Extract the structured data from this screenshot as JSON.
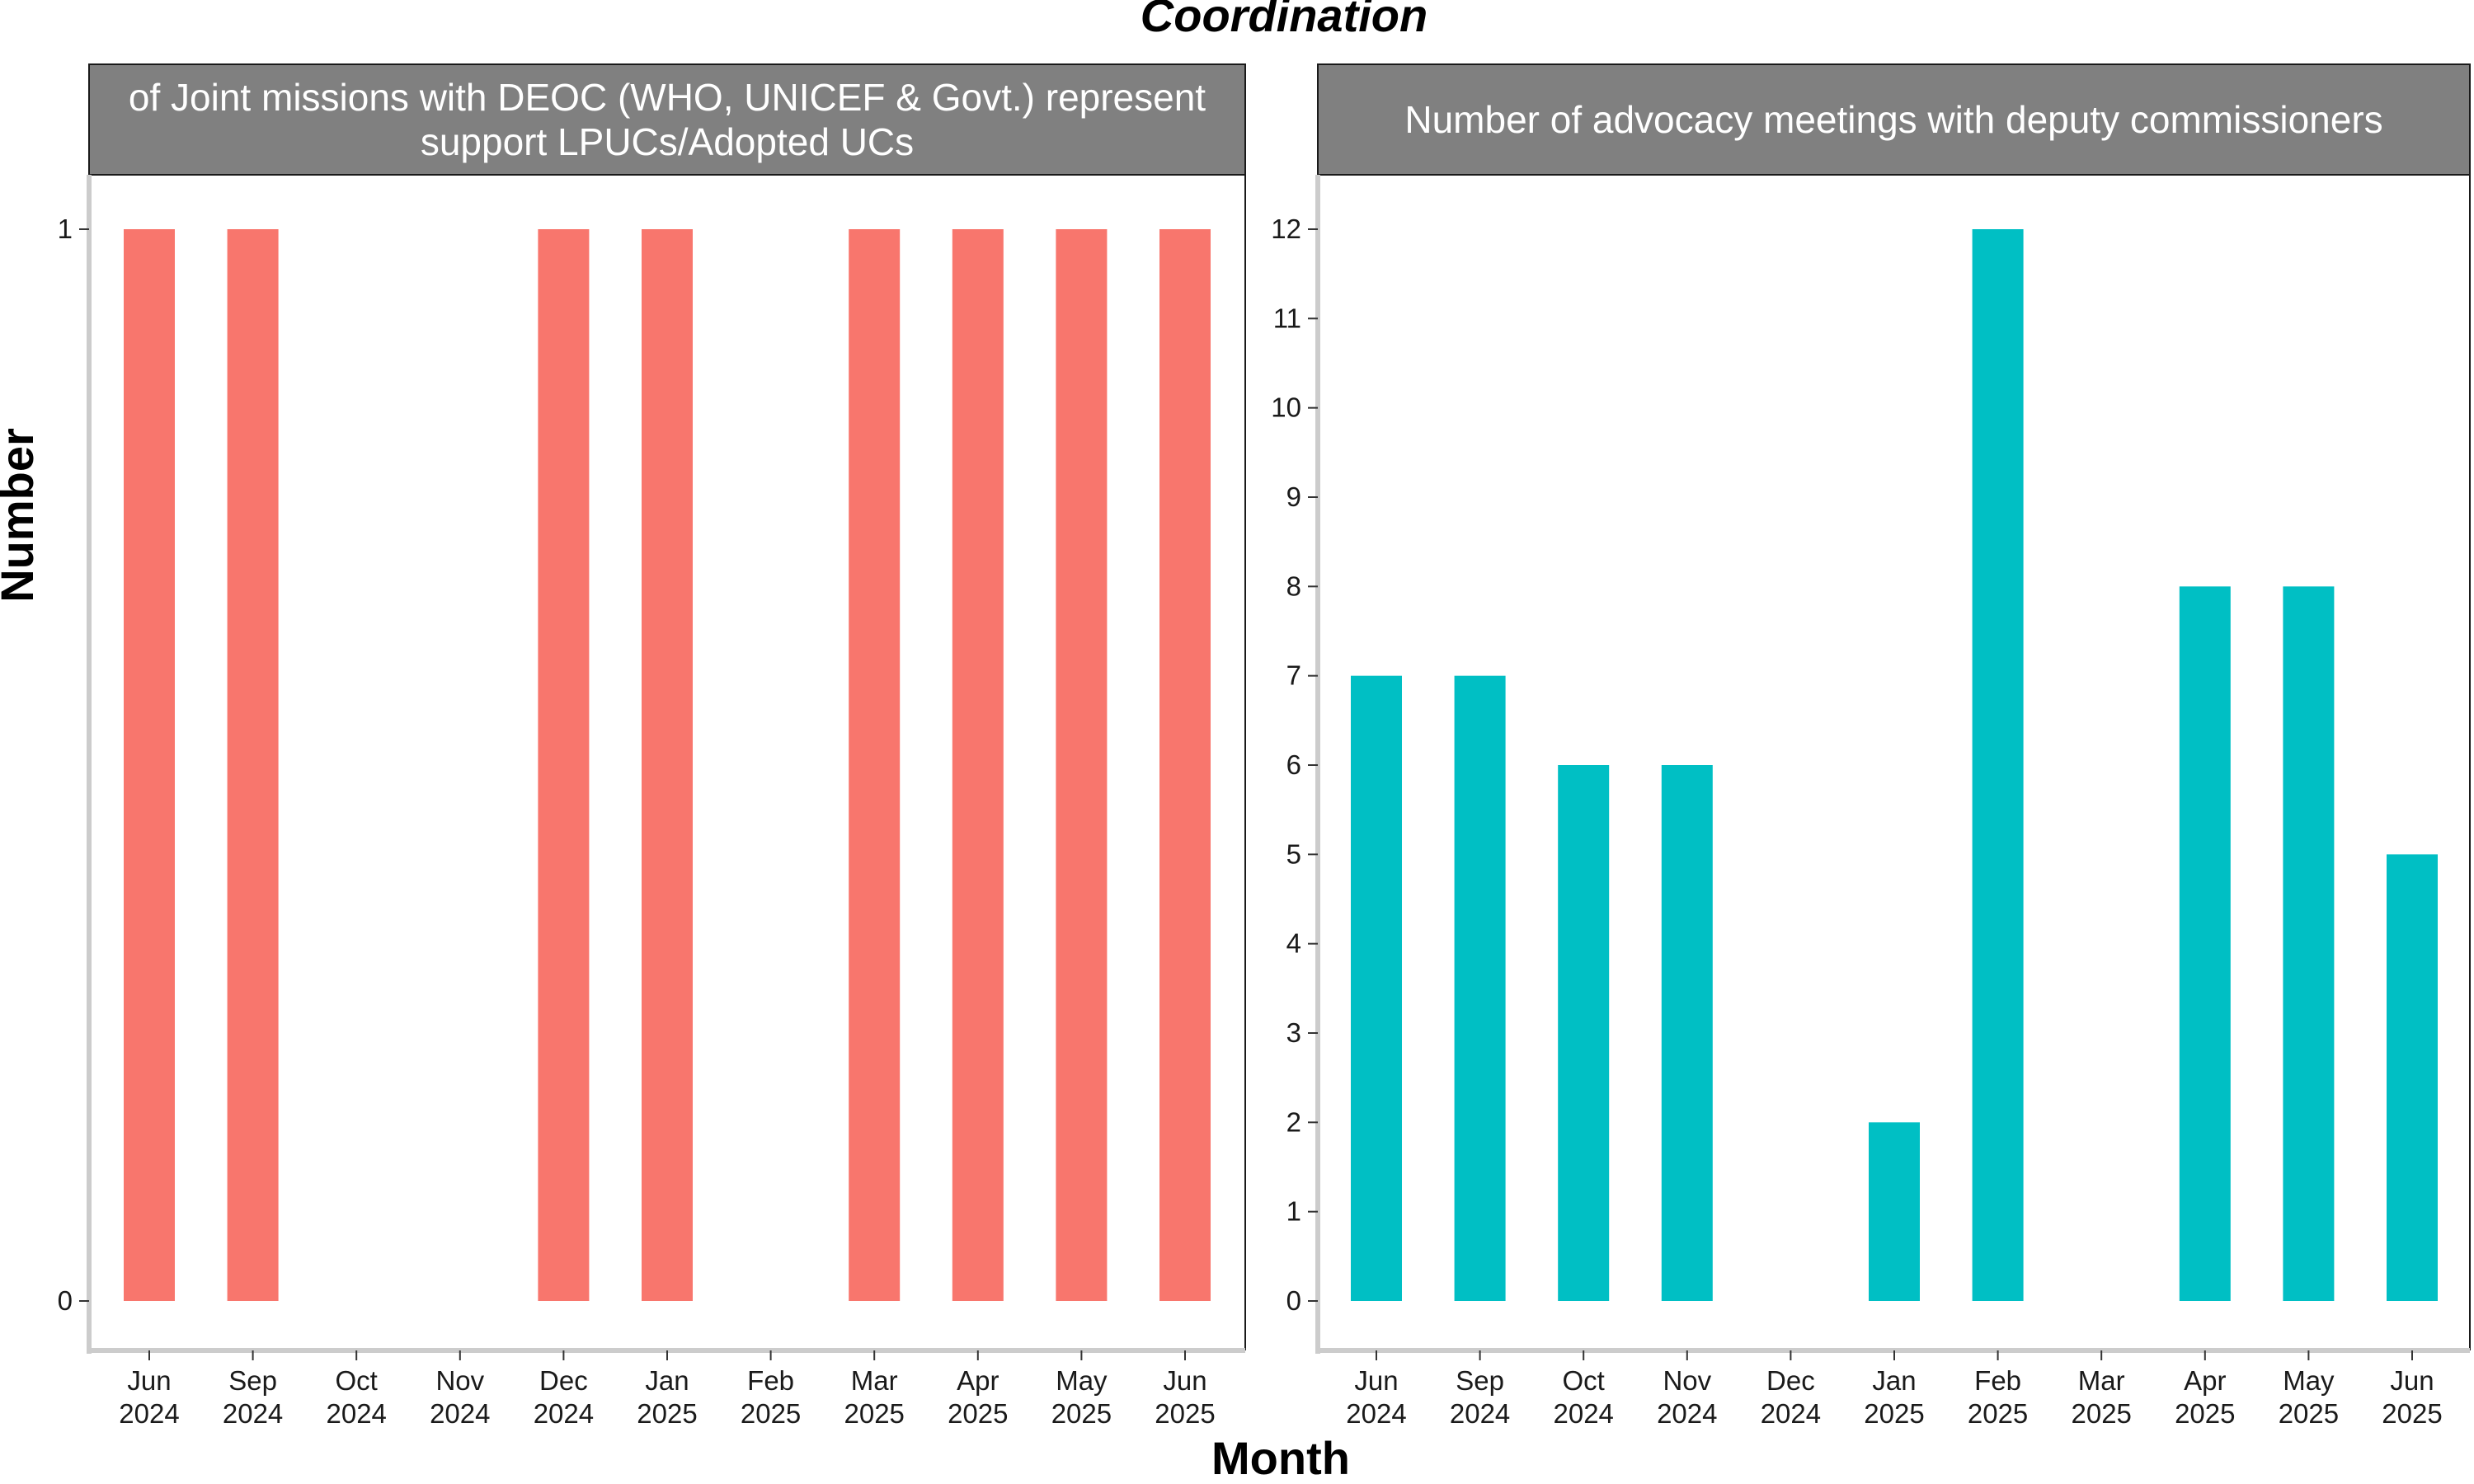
{
  "title": "Coordination",
  "xlabel": "Month",
  "ylabel": "Number",
  "chart_data": [
    {
      "type": "bar",
      "title": "of Joint missions with DEOC (WHO, UNICEF & Govt.) represent support LPUCs/Adopted UCs",
      "title_lines": [
        "of Joint missions with DEOC (WHO, UNICEF & Govt.) represent",
        "support LPUCs/Adopted UCs"
      ],
      "categories": [
        [
          "Jun",
          "2024"
        ],
        [
          "Sep",
          "2024"
        ],
        [
          "Oct",
          "2024"
        ],
        [
          "Nov",
          "2024"
        ],
        [
          "Dec",
          "2024"
        ],
        [
          "Jan",
          "2025"
        ],
        [
          "Feb",
          "2025"
        ],
        [
          "Mar",
          "2025"
        ],
        [
          "Apr",
          "2025"
        ],
        [
          "May",
          "2025"
        ],
        [
          "Jun",
          "2025"
        ]
      ],
      "values": [
        1,
        1,
        null,
        null,
        1,
        1,
        null,
        1,
        1,
        1,
        1
      ],
      "ylim": [
        0,
        1
      ],
      "yticks": [
        0,
        1
      ],
      "color": "#F8766D",
      "grid": false
    },
    {
      "type": "bar",
      "title": "Number of advocacy meetings with deputy commissioners",
      "title_lines": [
        "Number of advocacy meetings with deputy commissioners"
      ],
      "categories": [
        [
          "Jun",
          "2024"
        ],
        [
          "Sep",
          "2024"
        ],
        [
          "Oct",
          "2024"
        ],
        [
          "Nov",
          "2024"
        ],
        [
          "Dec",
          "2024"
        ],
        [
          "Jan",
          "2025"
        ],
        [
          "Feb",
          "2025"
        ],
        [
          "Mar",
          "2025"
        ],
        [
          "Apr",
          "2025"
        ],
        [
          "May",
          "2025"
        ],
        [
          "Jun",
          "2025"
        ]
      ],
      "values": [
        7,
        7,
        6,
        6,
        null,
        2,
        12,
        null,
        8,
        8,
        5
      ],
      "ylim": [
        0,
        12
      ],
      "yticks": [
        0,
        1,
        2,
        3,
        4,
        5,
        6,
        7,
        8,
        9,
        10,
        11,
        12
      ],
      "color": "#00BFC4",
      "grid": false
    }
  ],
  "colors": {
    "strip_background": "#808080",
    "strip_text": "#ffffff",
    "axis_line": "#cccccc"
  }
}
